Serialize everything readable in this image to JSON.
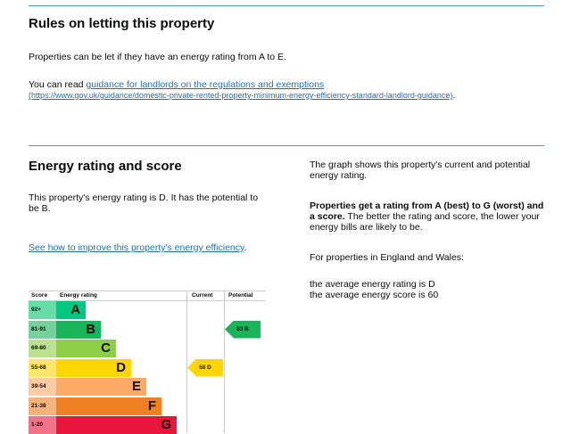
{
  "rules": {
    "title": "Rules on letting this property",
    "p1": "Properties can be let if they have an energy rating from A to E.",
    "p2_prefix": "You can read ",
    "p2_link": "guidance for landlords on the regulations and exemptions",
    "p2_url": "(https://www.gov.uk/guidance/domestic-private-rented-property-minimum-energy-efficiency-standard-landlord-guidance)",
    "p2_suffix": "."
  },
  "energy": {
    "title": "Energy rating and score",
    "p1": "This property's energy rating is D. It has the potential to be B.",
    "link": "See how to improve this property's energy efficiency",
    "link_suffix": "."
  },
  "side": {
    "p1": "The graph shows this property's current and potential energy rating.",
    "p2_bold": "Properties get a rating from A (best) to G (worst) and a score.",
    "p2_rest": " The better the rating and score, the lower your energy bills are likely to be.",
    "p3": "For properties in England and Wales:",
    "p4": "the average energy rating is D",
    "p5": "the average energy score is 60"
  },
  "chart_data": {
    "type": "table",
    "headers": [
      "Score",
      "Energy rating",
      "Current",
      "Potential"
    ],
    "bands": [
      {
        "score": "92+",
        "letter": "A",
        "color": "#00c781",
        "score_bg": "#66dda7"
      },
      {
        "score": "81-91",
        "letter": "B",
        "color": "#19b459",
        "score_bg": "#75d29b"
      },
      {
        "score": "69-80",
        "letter": "C",
        "color": "#8dce46",
        "score_bg": "#bbe290"
      },
      {
        "score": "55-68",
        "letter": "D",
        "color": "#ffd500",
        "score_bg": "#ffe666"
      },
      {
        "score": "39-54",
        "letter": "E",
        "color": "#fcaa65",
        "score_bg": "#fdcca3"
      },
      {
        "score": "21-38",
        "letter": "F",
        "color": "#ef8023",
        "score_bg": "#f5b37b"
      },
      {
        "score": "1-20",
        "letter": "G",
        "color": "#e9153b",
        "score_bg": "#f27389"
      }
    ],
    "current": {
      "score": 58,
      "letter": "D",
      "label": "58  D"
    },
    "potential": {
      "score": 83,
      "letter": "B",
      "label": "83  B"
    }
  }
}
